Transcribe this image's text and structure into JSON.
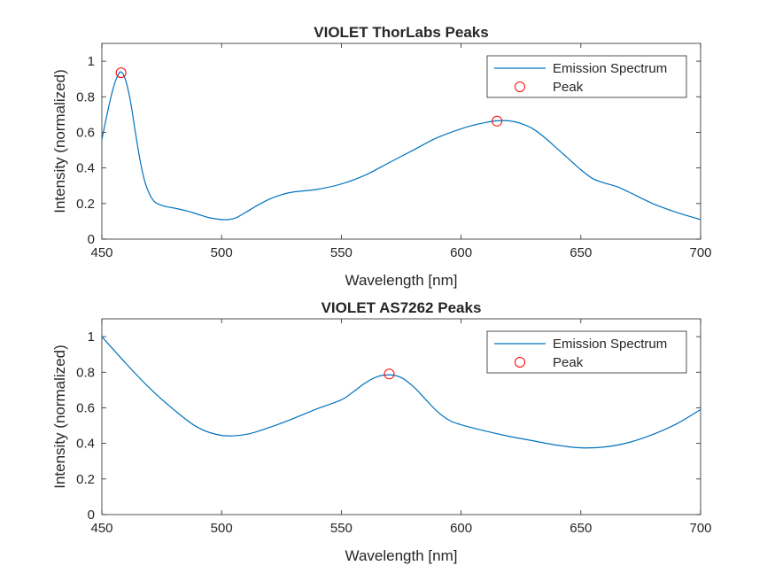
{
  "figure": {
    "background": "#ffffff",
    "line_color": "#0072bd",
    "peak_color": "#ff0000",
    "axes_color": "#262626"
  },
  "chart_data": [
    {
      "type": "line",
      "title": "VIOLET ThorLabs Peaks",
      "xlabel": "Wavelength [nm]",
      "ylabel": "Intensity (normalized)",
      "xlim": [
        450,
        700
      ],
      "ylim": [
        0,
        1.1
      ],
      "xticks": [
        450,
        500,
        550,
        600,
        650,
        700
      ],
      "yticks": [
        0,
        0.2,
        0.4,
        0.6,
        0.8,
        1
      ],
      "ytick_labels": [
        "0",
        "0.2",
        "0.4",
        "0.6",
        "0.8",
        "1"
      ],
      "xtick_labels": [
        "450",
        "500",
        "550",
        "600",
        "650",
        "700"
      ],
      "grid": false,
      "legend_position": "top-right",
      "legend": [
        "Emission Spectrum",
        "Peak"
      ],
      "series": [
        {
          "name": "Emission Spectrum",
          "style": "line",
          "x": [
            450,
            452,
            454,
            456,
            458,
            460,
            462,
            464,
            466,
            468,
            470,
            472,
            474,
            476,
            478,
            480,
            485,
            490,
            495,
            500,
            503,
            506,
            510,
            515,
            520,
            525,
            530,
            540,
            550,
            560,
            570,
            580,
            590,
            600,
            605,
            610,
            615,
            620,
            625,
            630,
            635,
            640,
            645,
            650,
            655,
            660,
            665,
            670,
            680,
            690,
            700
          ],
          "y": [
            0.56,
            0.69,
            0.81,
            0.9,
            0.94,
            0.89,
            0.77,
            0.6,
            0.44,
            0.32,
            0.25,
            0.21,
            0.195,
            0.185,
            0.18,
            0.175,
            0.16,
            0.14,
            0.12,
            0.11,
            0.11,
            0.12,
            0.15,
            0.19,
            0.225,
            0.25,
            0.265,
            0.28,
            0.31,
            0.36,
            0.43,
            0.5,
            0.57,
            0.62,
            0.64,
            0.655,
            0.665,
            0.665,
            0.65,
            0.62,
            0.57,
            0.51,
            0.45,
            0.39,
            0.34,
            0.315,
            0.295,
            0.265,
            0.2,
            0.15,
            0.11
          ]
        },
        {
          "name": "Peak",
          "style": "markers",
          "x": [
            458,
            615
          ],
          "y": [
            0.935,
            0.663
          ]
        }
      ]
    },
    {
      "type": "line",
      "title": "VIOLET AS7262 Peaks",
      "xlabel": "Wavelength [nm]",
      "ylabel": "Intensity (normalized)",
      "xlim": [
        450,
        700
      ],
      "ylim": [
        0,
        1.1
      ],
      "xticks": [
        450,
        500,
        550,
        600,
        650,
        700
      ],
      "yticks": [
        0,
        0.2,
        0.4,
        0.6,
        0.8,
        1
      ],
      "ytick_labels": [
        "0",
        "0.2",
        "0.4",
        "0.6",
        "0.8",
        "1"
      ],
      "xtick_labels": [
        "450",
        "500",
        "550",
        "600",
        "650",
        "700"
      ],
      "grid": false,
      "legend_position": "top-right",
      "legend": [
        "Emission Spectrum",
        "Peak"
      ],
      "series": [
        {
          "name": "Emission Spectrum",
          "style": "line",
          "x": [
            450,
            460,
            470,
            480,
            490,
            500,
            510,
            520,
            530,
            540,
            550,
            555,
            560,
            565,
            570,
            575,
            580,
            585,
            590,
            595,
            600,
            610,
            620,
            630,
            640,
            650,
            660,
            670,
            680,
            690,
            700
          ],
          "y": [
            1.0,
            0.85,
            0.71,
            0.59,
            0.49,
            0.445,
            0.45,
            0.49,
            0.54,
            0.595,
            0.645,
            0.69,
            0.74,
            0.775,
            0.785,
            0.77,
            0.72,
            0.65,
            0.58,
            0.53,
            0.505,
            0.47,
            0.44,
            0.415,
            0.39,
            0.375,
            0.38,
            0.405,
            0.45,
            0.51,
            0.59
          ]
        },
        {
          "name": "Peak",
          "style": "markers",
          "x": [
            570
          ],
          "y": [
            0.79
          ]
        }
      ]
    }
  ]
}
